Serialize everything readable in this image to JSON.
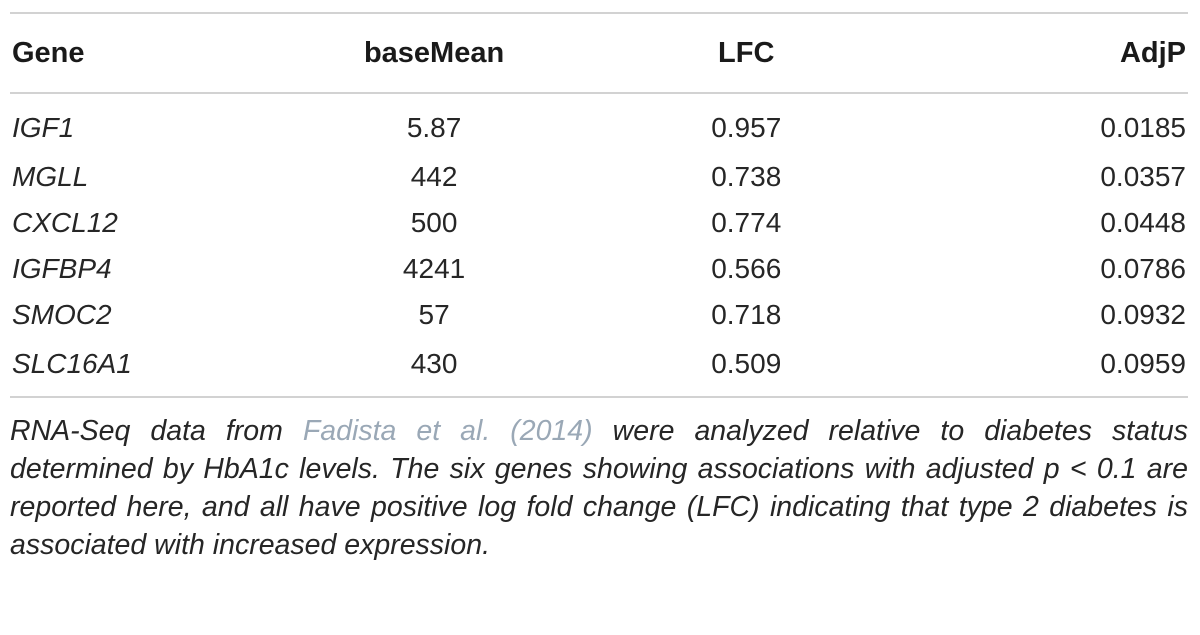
{
  "table": {
    "headers": [
      "Gene",
      "baseMean",
      "LFC",
      "AdjP"
    ],
    "rows": [
      {
        "gene": "IGF1",
        "baseMean": "5.87",
        "lfc": "0.957",
        "adjp": "0.0185"
      },
      {
        "gene": "MGLL",
        "baseMean": "442",
        "lfc": "0.738",
        "adjp": "0.0357"
      },
      {
        "gene": "CXCL12",
        "baseMean": "500",
        "lfc": "0.774",
        "adjp": "0.0448"
      },
      {
        "gene": "IGFBP4",
        "baseMean": "4241",
        "lfc": "0.566",
        "adjp": "0.0786"
      },
      {
        "gene": "SMOC2",
        "baseMean": "57",
        "lfc": "0.718",
        "adjp": "0.0932"
      },
      {
        "gene": "SLC16A1",
        "baseMean": "430",
        "lfc": "0.509",
        "adjp": "0.0959"
      }
    ]
  },
  "caption": {
    "before_ref": "RNA-Seq data from ",
    "ref": "Fadista et al. (2014)",
    "after_ref": " were analyzed relative to diabetes status determined by HbA1c levels. The six genes showing associations with adjusted p < 0.1 are reported here, and all have positive log fold change (LFC) indicating that type 2 diabetes is associated with increased expression."
  },
  "colors": {
    "rule": "#d2d2d2",
    "text": "#262626",
    "reference_link": "#9aa8b6"
  }
}
